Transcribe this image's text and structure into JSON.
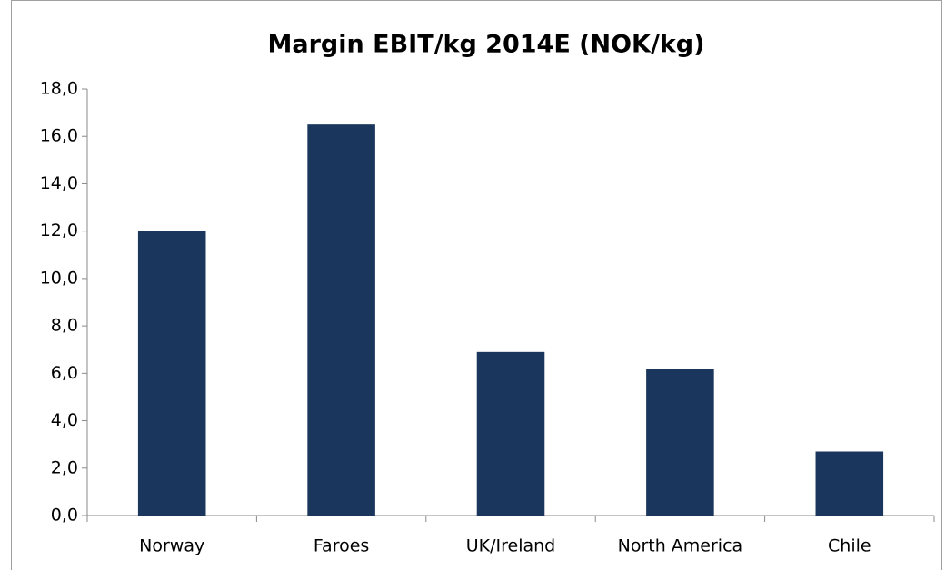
{
  "chart_data": {
    "type": "bar",
    "title": "Margin EBIT/kg 2014E (NOK/kg)",
    "categories": [
      "Norway",
      "Faroes",
      "UK/Ireland",
      "North America",
      "Chile"
    ],
    "values": [
      12.0,
      16.5,
      6.9,
      6.2,
      2.7
    ],
    "color": "#1b365d",
    "ylim": [
      0,
      18
    ],
    "yticks": [
      {
        "value": 0,
        "label": "0,0"
      },
      {
        "value": 2,
        "label": "2,0"
      },
      {
        "value": 4,
        "label": "4,0"
      },
      {
        "value": 6,
        "label": "6,0"
      },
      {
        "value": 8,
        "label": "8,0"
      },
      {
        "value": 10,
        "label": "10,0"
      },
      {
        "value": 12,
        "label": "12,0"
      },
      {
        "value": 14,
        "label": "14,0"
      },
      {
        "value": 16,
        "label": "16,0"
      },
      {
        "value": 18,
        "label": "18,0"
      }
    ],
    "grid": false
  }
}
